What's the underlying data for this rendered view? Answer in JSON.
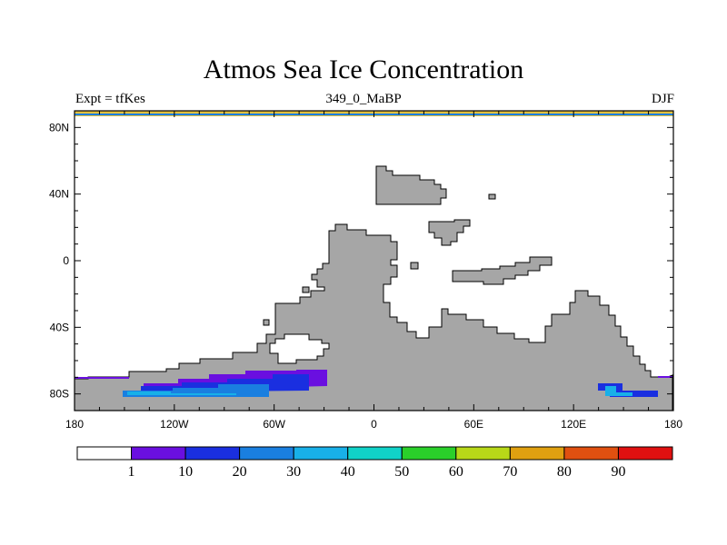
{
  "title": "Atmos Sea Ice Concentration",
  "subtitle_left": "Expt = tfKes",
  "subtitle_center": "349_0_MaBP",
  "subtitle_right": "DJF",
  "map": {
    "lon_range": [
      -180,
      180
    ],
    "lat_range": [
      -90,
      90
    ],
    "land_color": "#a6a6a6",
    "ocean_color": "#ffffff",
    "lat_tick_labels": [
      {
        "lat": 80,
        "label": "80N"
      },
      {
        "lat": 40,
        "label": "40N"
      },
      {
        "lat": 0,
        "label": "0"
      },
      {
        "lat": -40,
        "label": "40S"
      },
      {
        "lat": -80,
        "label": "80S"
      }
    ],
    "lon_tick_labels": [
      {
        "lon": -180,
        "label": "180"
      },
      {
        "lon": -120,
        "label": "120W"
      },
      {
        "lon": -60,
        "label": "60W"
      },
      {
        "lon": 0,
        "label": "0"
      },
      {
        "lon": 60,
        "label": "60E"
      },
      {
        "lon": 120,
        "label": "120E"
      },
      {
        "lon": 180,
        "label": "180"
      }
    ]
  },
  "colorbar": {
    "colors": [
      "#ffffff",
      "#6a0fe0",
      "#1a2fe0",
      "#1a7fe0",
      "#18b0e8",
      "#10d2c8",
      "#2ad02a",
      "#b8d818",
      "#e0a010",
      "#e05010",
      "#e01010"
    ],
    "labels": [
      "1",
      "10",
      "20",
      "30",
      "40",
      "50",
      "60",
      "70",
      "80",
      "90"
    ]
  }
}
